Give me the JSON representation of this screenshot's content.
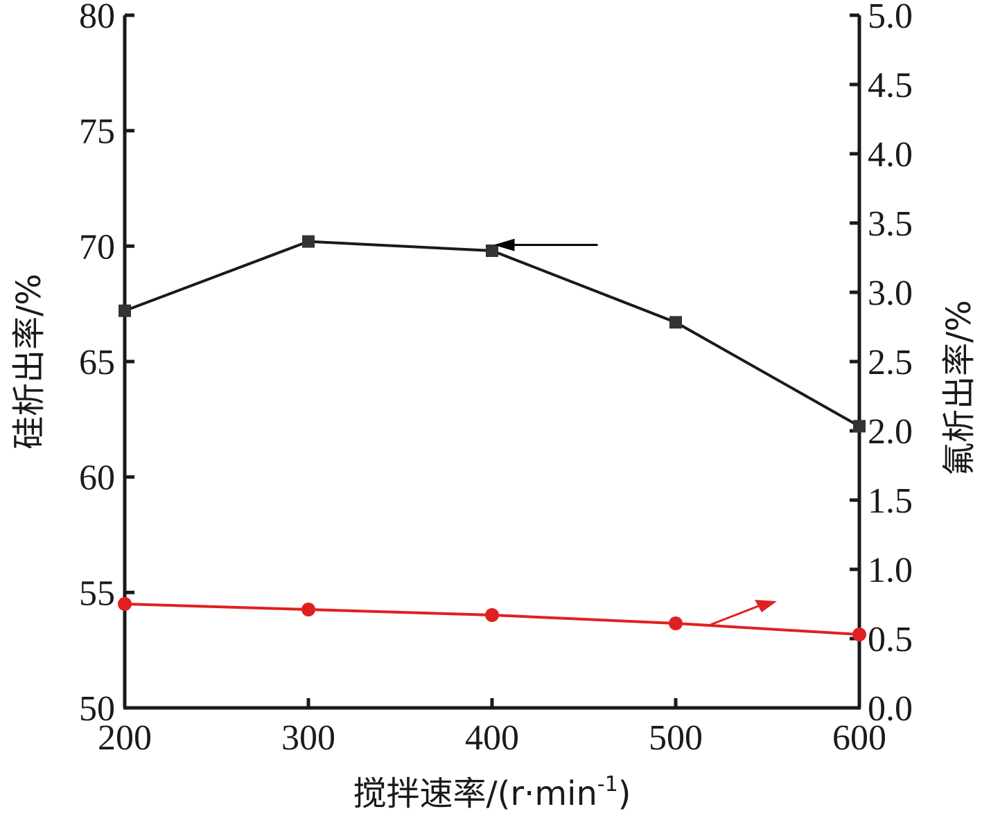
{
  "chart_data": {
    "type": "line",
    "x": [
      200,
      300,
      400,
      500,
      600
    ],
    "xlim": [
      200,
      600
    ],
    "x_ticks": [
      "200",
      "300",
      "400",
      "500",
      "600"
    ],
    "xlabel_main": "搅拌速率/(r·min",
    "xlabel_sup": "-1",
    "xlabel_end": ")",
    "y_left": {
      "label": "硅析出率/%",
      "lim": [
        50,
        80
      ],
      "ticks": [
        "50",
        "55",
        "60",
        "65",
        "70",
        "75",
        "80"
      ]
    },
    "y_right": {
      "label": "氟析出率/%",
      "lim": [
        0,
        5
      ],
      "ticks": [
        "0.0",
        "0.5",
        "1.0",
        "1.5",
        "2.0",
        "2.5",
        "3.0",
        "3.5",
        "4.0",
        "4.5",
        "5.0"
      ]
    },
    "series": [
      {
        "axis": "left",
        "marker": "square",
        "color": "#1a1a1a",
        "marker_color": "#333333",
        "values": [
          67.2,
          70.2,
          69.8,
          66.7,
          62.2
        ]
      },
      {
        "axis": "right",
        "marker": "circle",
        "color": "#e02020",
        "values": [
          0.75,
          0.71,
          0.67,
          0.61,
          0.53
        ]
      }
    ],
    "arrows": [
      {
        "series": 0,
        "direction": "left",
        "color": "#000000"
      },
      {
        "series": 1,
        "direction": "right",
        "color": "#e02020"
      }
    ]
  }
}
